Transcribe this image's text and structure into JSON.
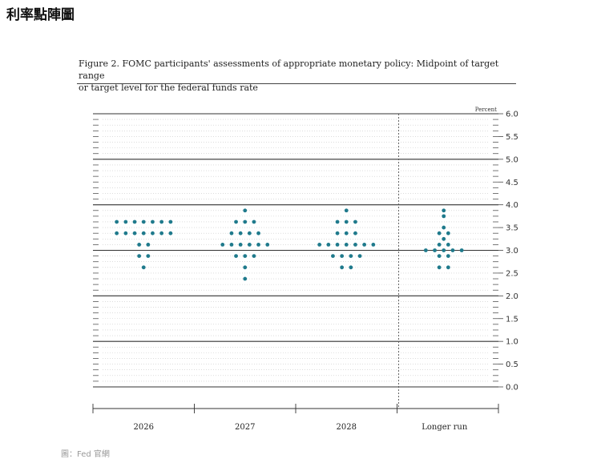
{
  "heading": "利率點陣圖",
  "figure": {
    "caption_line1": "Figure 2. FOMC participants' assessments of appropriate monetary policy: Midpoint of target range",
    "caption_line2": "or target level for the federal funds rate",
    "source": "圖：Fed 官網"
  },
  "colors": {
    "dot": "#1f7a8c",
    "major_line": "#333333",
    "minor_line": "#c8c8c8",
    "divider": "#555555"
  },
  "chart_data": {
    "type": "scatter",
    "title": "",
    "xlabel": "",
    "ylabel": "Percent",
    "ylim": [
      0,
      6
    ],
    "y_ticks": [
      "6.0",
      "5.5",
      "5.0",
      "4.5",
      "4.0",
      "3.5",
      "3.0",
      "2.5",
      "2.0",
      "1.5",
      "1.0",
      "0.5",
      "0.0"
    ],
    "y_tick_values": [
      6.0,
      5.5,
      5.0,
      4.5,
      4.0,
      3.5,
      3.0,
      2.5,
      2.0,
      1.5,
      1.0,
      0.5,
      0.0
    ],
    "minor_step": 0.125,
    "categories": [
      "2026",
      "2027",
      "2028",
      "Longer run"
    ],
    "dots": [
      {
        "category": "2026",
        "rows": [
          {
            "y": 3.625,
            "count": 7
          },
          {
            "y": 3.375,
            "count": 7
          },
          {
            "y": 3.125,
            "count": 2
          },
          {
            "y": 2.875,
            "count": 2
          },
          {
            "y": 2.625,
            "count": 1
          }
        ]
      },
      {
        "category": "2027",
        "rows": [
          {
            "y": 3.875,
            "count": 1
          },
          {
            "y": 3.625,
            "count": 3
          },
          {
            "y": 3.375,
            "count": 4
          },
          {
            "y": 3.125,
            "count": 6
          },
          {
            "y": 2.875,
            "count": 3
          },
          {
            "y": 2.625,
            "count": 1
          },
          {
            "y": 2.375,
            "count": 1
          }
        ]
      },
      {
        "category": "2028",
        "rows": [
          {
            "y": 3.875,
            "count": 1
          },
          {
            "y": 3.625,
            "count": 3
          },
          {
            "y": 3.375,
            "count": 3
          },
          {
            "y": 3.125,
            "count": 7
          },
          {
            "y": 2.875,
            "count": 4
          },
          {
            "y": 2.625,
            "count": 2
          }
        ]
      },
      {
        "category": "Longer run",
        "rows": [
          {
            "y": 3.875,
            "count": 1
          },
          {
            "y": 3.75,
            "count": 1
          },
          {
            "y": 3.5,
            "count": 1
          },
          {
            "y": 3.375,
            "count": 2
          },
          {
            "y": 3.25,
            "count": 1
          },
          {
            "y": 3.125,
            "count": 2
          },
          {
            "y": 3.0,
            "count": 5
          },
          {
            "y": 2.875,
            "count": 2
          },
          {
            "y": 2.625,
            "count": 2
          }
        ]
      }
    ]
  }
}
